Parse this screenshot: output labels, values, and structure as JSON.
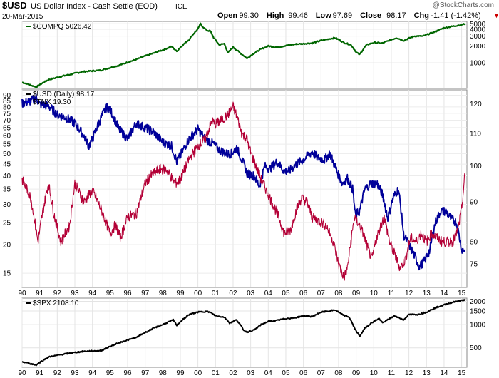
{
  "header": {
    "symbol": "$USD",
    "name": "US Dollar Index - Cash Settle (EOD)",
    "exchange": "ICE",
    "date": "20-Mar-2015",
    "watermark": "@StockCharts.com",
    "quote": [
      {
        "label": "Open",
        "value": "99.30"
      },
      {
        "label": "High",
        "value": "99.46"
      },
      {
        "label": "Low",
        "value": "97.69"
      },
      {
        "label": "Close",
        "value": "98.17"
      },
      {
        "label": "Chg",
        "value": "-1.41 (-1.42%)"
      }
    ],
    "chg_marker": "▼"
  },
  "colors": {
    "compq": "#006600",
    "usd": "#000000",
    "usd_recent": "#cc0000",
    "tnx": "#000099",
    "tnx_legend": "#0000cc",
    "usd_pre2006": "#b30036",
    "grid": "#e0e0e0",
    "border": "#888888",
    "text": "#000000",
    "neg": "#cc0000"
  },
  "chart_data": [
    {
      "type": "line",
      "panel": "top",
      "title": "$COMPQ 5026.42",
      "series": [
        {
          "name": "$COMPQ",
          "color": "#006600",
          "x": [
            1990.0,
            1990.8,
            1991.5,
            1992.5,
            1993.5,
            1994.5,
            1995.5,
            1996.5,
            1997.5,
            1998.0,
            1998.5,
            1998.8,
            1999.5,
            2000.0,
            2000.15,
            2000.25,
            2000.5,
            2000.7,
            2000.9,
            2001.2,
            2001.5,
            2001.7,
            2002.0,
            2002.4,
            2002.8,
            2003.0,
            2003.5,
            2004.0,
            2004.5,
            2005.5,
            2006.5,
            2007.0,
            2007.8,
            2008.3,
            2008.7,
            2009.0,
            2009.2,
            2009.6,
            2010.0,
            2010.5,
            2011.3,
            2011.7,
            2012.3,
            2012.8,
            2013.5,
            2014.0,
            2014.5,
            2015.0,
            2015.22
          ],
          "y": [
            450,
            370,
            500,
            600,
            700,
            740,
            900,
            1150,
            1500,
            1700,
            1950,
            1600,
            2600,
            4000,
            5000,
            4500,
            3800,
            3700,
            2800,
            2100,
            2200,
            1500,
            1900,
            1500,
            1200,
            1350,
            1700,
            2000,
            1900,
            2150,
            2250,
            2500,
            2800,
            2300,
            2100,
            1550,
            1400,
            2100,
            2300,
            2250,
            2800,
            2500,
            3000,
            3000,
            3600,
            4200,
            4500,
            4800,
            5026
          ]
        }
      ],
      "y_scale": "log",
      "ylim": [
        350,
        5500
      ],
      "y_ticks": [
        1000,
        2000,
        3000,
        4000,
        5000
      ]
    },
    {
      "type": "line",
      "panel": "middle",
      "title": "$USD (Daily) 98.17",
      "legend": [
        "$USD (Daily) 98.17",
        "$TNX 19.30"
      ],
      "x_ticks": [
        "90",
        "91",
        "92",
        "93",
        "94",
        "95",
        "96",
        "97",
        "98",
        "99",
        "00",
        "01",
        "02",
        "03",
        "04",
        "05",
        "06",
        "07",
        "08",
        "09",
        "10",
        "11",
        "12",
        "13",
        "14",
        "15"
      ],
      "series": [
        {
          "name": "$USD (Daily)",
          "axis": "right",
          "color": "#b30036",
          "x": [
            1990.0,
            1990.5,
            1990.9,
            1991.2,
            1991.5,
            1991.8,
            1992.2,
            1992.7,
            1993.0,
            1993.5,
            1994.0,
            1994.5,
            1995.0,
            1995.3,
            1995.6,
            1996.0,
            1996.5,
            1997.0,
            1997.3,
            1997.8,
            1998.2,
            1998.7,
            1999.0,
            1999.5,
            2000.0,
            2000.4,
            2000.8,
            2001.0,
            2001.5,
            2001.8,
            2002.0,
            2002.2,
            2002.5,
            2002.8,
            2003.0,
            2003.3,
            2003.6,
            2004.0,
            2004.3,
            2004.6,
            2004.9,
            2005.3,
            2005.6,
            2005.9,
            2006.2,
            2006.5,
            2006.9,
            2007.3,
            2007.7,
            2008.0,
            2008.3,
            2008.5,
            2008.7,
            2008.9,
            2009.2,
            2009.4,
            2009.7,
            2009.9,
            2010.1,
            2010.4,
            2010.6,
            2010.9,
            2011.2,
            2011.5,
            2011.8,
            2012.1,
            2012.4,
            2012.7,
            2013.0,
            2013.3,
            2013.6,
            2013.9,
            2014.2,
            2014.5,
            2014.8,
            2015.0,
            2015.2
          ],
          "y": [
            96,
            91,
            80,
            88,
            95,
            87,
            80,
            84,
            95,
            90,
            93,
            88,
            82,
            84,
            81,
            86,
            87,
            95,
            97,
            99,
            99,
            95,
            96,
            102,
            106,
            108,
            114,
            113,
            115,
            117,
            119,
            116,
            110,
            108,
            104,
            100,
            96,
            92,
            89,
            86,
            82,
            83,
            88,
            91,
            90,
            86,
            85,
            84,
            80,
            75,
            72,
            74,
            80,
            86,
            84,
            82,
            78,
            76,
            80,
            84,
            86,
            80,
            77,
            74,
            76,
            81,
            80,
            82,
            80,
            82,
            81,
            80,
            80,
            80,
            83,
            88,
            98
          ]
        }
      ],
      "series_tnx": {
        "name": "$TNX",
        "axis": "left",
        "color": "#000099",
        "x": [
          1990.0,
          1990.5,
          1990.8,
          1991.0,
          1991.5,
          1992.0,
          1992.5,
          1993.0,
          1993.5,
          1993.8,
          1994.0,
          1994.5,
          1994.8,
          1995.0,
          1995.5,
          1996.0,
          1996.5,
          1997.0,
          1997.5,
          1998.0,
          1998.5,
          1998.8,
          1999.0,
          1999.5,
          2000.0,
          2000.4,
          2000.9,
          2001.2,
          2001.6,
          2001.9,
          2002.2,
          2002.5,
          2002.8,
          2003.2,
          2003.5,
          2003.8,
          2004.1,
          2004.5,
          2004.9,
          2005.2,
          2005.6,
          2006.0,
          2006.5,
          2006.8,
          2007.2,
          2007.5,
          2007.9,
          2008.2,
          2008.5,
          2008.8,
          2008.95,
          2009.2,
          2009.5,
          2009.8,
          2010.2,
          2010.5,
          2010.8,
          2011.1,
          2011.4,
          2011.7,
          2012.0,
          2012.3,
          2012.6,
          2012.9,
          2013.2,
          2013.5,
          2013.8,
          2014.1,
          2014.4,
          2014.7,
          2015.0,
          2015.2
        ],
        "y": [
          83,
          85,
          88,
          82,
          81,
          74,
          72,
          68,
          60,
          54,
          58,
          72,
          80,
          78,
          64,
          58,
          68,
          65,
          62,
          56,
          54,
          46,
          49,
          58,
          64,
          58,
          55,
          52,
          50,
          50,
          53,
          47,
          41,
          40,
          36,
          44,
          43,
          46,
          42,
          42,
          45,
          47,
          51,
          48,
          47,
          50,
          42,
          37,
          39,
          35,
          27,
          28,
          35,
          37,
          37,
          33,
          26,
          32,
          35,
          22,
          20,
          18,
          16,
          17,
          19,
          25,
          28,
          28,
          26,
          25,
          19,
          19
        ]
      },
      "y_left": {
        "scale": "log",
        "ticks": [
          15,
          20,
          25,
          30,
          35,
          40,
          45,
          50,
          55,
          60,
          65,
          70,
          75,
          80,
          85,
          90
        ],
        "lim": [
          13,
          95
        ]
      },
      "y_right": {
        "scale": "log",
        "ticks": [
          75,
          80,
          90,
          100,
          110,
          120
        ],
        "lim": [
          70,
          125
        ]
      }
    },
    {
      "type": "line",
      "panel": "bottom",
      "title": "$SPX 2108.10",
      "x_ticks": [
        "90",
        "91",
        "92",
        "93",
        "94",
        "95",
        "96",
        "97",
        "98",
        "99",
        "00",
        "01",
        "02",
        "03",
        "04",
        "05",
        "06",
        "07",
        "08",
        "09",
        "10",
        "11",
        "12",
        "13",
        "14",
        "15"
      ],
      "series": [
        {
          "name": "$SPX",
          "color": "#000000",
          "x": [
            1990.0,
            1990.8,
            1991.5,
            1992.5,
            1993.5,
            1994.5,
            1995.5,
            1996.5,
            1997.5,
            1998.0,
            1998.6,
            1998.8,
            1999.5,
            2000.0,
            2000.5,
            2000.7,
            2001.0,
            2001.5,
            2001.8,
            2002.2,
            2002.6,
            2002.8,
            2003.2,
            2003.6,
            2004.0,
            2004.5,
            2005.0,
            2005.5,
            2006.0,
            2006.5,
            2007.0,
            2007.5,
            2007.8,
            2008.2,
            2008.6,
            2008.9,
            2009.2,
            2009.5,
            2010.0,
            2010.3,
            2010.5,
            2011.2,
            2011.7,
            2012.0,
            2012.5,
            2013.0,
            2013.5,
            2014.0,
            2014.5,
            2015.0,
            2015.22
          ],
          "y": [
            330,
            300,
            380,
            420,
            450,
            460,
            580,
            680,
            900,
            1000,
            1150,
            980,
            1350,
            1450,
            1480,
            1440,
            1300,
            1250,
            1050,
            1150,
            850,
            800,
            850,
            1000,
            1100,
            1130,
            1200,
            1220,
            1300,
            1270,
            1450,
            1500,
            1550,
            1350,
            1250,
            900,
            700,
            900,
            1100,
            1200,
            1050,
            1300,
            1150,
            1350,
            1350,
            1450,
            1650,
            1800,
            1950,
            2050,
            2108
          ]
        }
      ],
      "y_scale": "log",
      "ylim": [
        280,
        2200
      ],
      "y_ticks": [
        500,
        1000,
        1500,
        2000
      ]
    }
  ]
}
